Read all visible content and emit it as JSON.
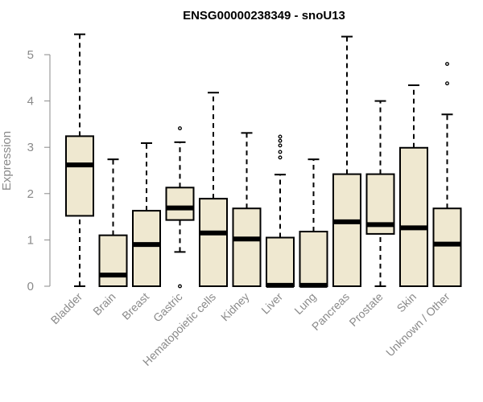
{
  "chart_data": {
    "type": "box",
    "title": "ENSG00000238349 - snoU13",
    "xlabel": "",
    "ylabel": "Expression",
    "ylim": [
      0,
      5.5
    ],
    "yticks": [
      0,
      1,
      2,
      3,
      4,
      5
    ],
    "grid": false,
    "legend": "none",
    "box_fill": "#efe8d0",
    "box_stroke": "#000000",
    "axis_color": "#8a8a8a",
    "categories": [
      "Bladder",
      "Brain",
      "Breast",
      "Gastric",
      "Hematopoietic cells",
      "Kidney",
      "Liver",
      "Lung",
      "Pancreas",
      "Prostate",
      "Skin",
      "Unknown / Other"
    ],
    "boxes": [
      {
        "name": "Bladder",
        "min": 0.0,
        "q1": 1.52,
        "median": 2.62,
        "q3": 3.24,
        "max": 5.44,
        "outliers": []
      },
      {
        "name": "Brain",
        "min": 0.0,
        "q1": 0.0,
        "median": 0.24,
        "q3": 1.1,
        "max": 2.74,
        "outliers": []
      },
      {
        "name": "Breast",
        "min": 0.0,
        "q1": 0.0,
        "median": 0.9,
        "q3": 1.63,
        "max": 3.09,
        "outliers": []
      },
      {
        "name": "Gastric",
        "min": 0.74,
        "q1": 1.43,
        "median": 1.69,
        "q3": 2.13,
        "max": 3.11,
        "outliers": [
          0.0,
          3.41
        ]
      },
      {
        "name": "Hematopoietic cells",
        "min": 0.0,
        "q1": 0.0,
        "median": 1.15,
        "q3": 1.89,
        "max": 4.18,
        "outliers": []
      },
      {
        "name": "Kidney",
        "min": 0.0,
        "q1": 0.0,
        "median": 1.02,
        "q3": 1.68,
        "max": 3.31,
        "outliers": []
      },
      {
        "name": "Liver",
        "min": 0.0,
        "q1": 0.0,
        "median": 0.02,
        "q3": 1.05,
        "max": 2.41,
        "outliers": [
          2.78,
          2.9,
          3.04,
          3.14,
          3.23
        ]
      },
      {
        "name": "Lung",
        "min": 0.0,
        "q1": 0.0,
        "median": 0.02,
        "q3": 1.18,
        "max": 2.74,
        "outliers": []
      },
      {
        "name": "Pancreas",
        "min": 0.0,
        "q1": 0.0,
        "median": 1.39,
        "q3": 2.42,
        "max": 5.39,
        "outliers": []
      },
      {
        "name": "Prostate",
        "min": 0.0,
        "q1": 1.13,
        "median": 1.33,
        "q3": 2.42,
        "max": 4.0,
        "outliers": []
      },
      {
        "name": "Skin",
        "min": 0.0,
        "q1": 0.0,
        "median": 1.26,
        "q3": 2.99,
        "max": 4.34,
        "outliers": []
      },
      {
        "name": "Unknown / Other",
        "min": 0.0,
        "q1": 0.0,
        "median": 0.91,
        "q3": 1.68,
        "max": 3.71,
        "outliers": [
          4.38,
          4.8
        ]
      }
    ]
  }
}
